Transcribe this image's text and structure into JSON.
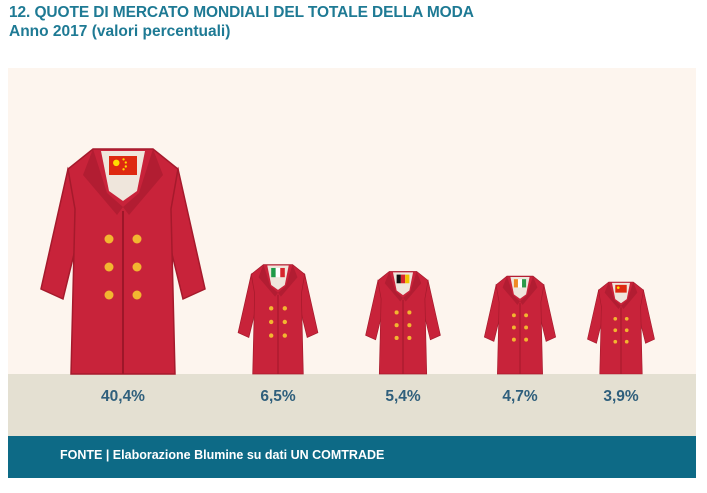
{
  "header": {
    "title": "12. QUOTE DI MERCATO MONDIALI DEL TOTALE DELLA MODA",
    "subtitle": "Anno 2017 (valori percentuali)"
  },
  "footer": {
    "source": "FONTE | Elaborazione Blumine su dati UN COMTRADE"
  },
  "colors": {
    "coat": "#c8233a",
    "button": "#f2b630",
    "title": "#1e7a94",
    "source_bar": "#0d6a86"
  },
  "chart_data": {
    "type": "bar",
    "categories": [
      "china-flag",
      "italy-flag",
      "germany-flag",
      "india-flag",
      "vietnam-flag"
    ],
    "values": [
      40.4,
      6.5,
      5.4,
      4.7,
      3.9
    ],
    "value_labels": [
      "40,4%",
      "6,5%",
      "5,4%",
      "4,7%",
      "3,9%"
    ],
    "unit": "%"
  }
}
